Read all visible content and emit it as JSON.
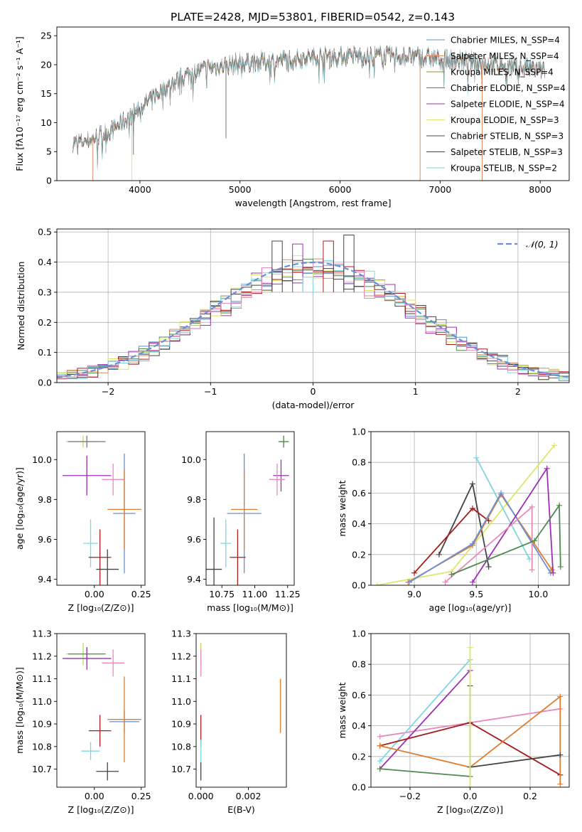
{
  "chart_data": [
    {
      "id": "spectrum",
      "type": "line",
      "title": "PLATE=2428, MJD=53801, FIBERID=0542, z=0.143",
      "xlabel": "wavelength [Angstrom, rest frame]",
      "ylabel": "Flux [fλ10⁻¹⁷ erg cm⁻² s⁻¹ A⁻¹]",
      "xlim": [
        3170,
        8290
      ],
      "ylim": [
        0,
        26.5
      ],
      "xticks": [
        4000,
        5000,
        6000,
        7000,
        8000
      ],
      "yticks": [
        0,
        5,
        10,
        15,
        20,
        25
      ],
      "legend_position": "top-right",
      "series": [
        {
          "name": "Chabrier MILES, N_SSP=4",
          "color": "#5a8fc2"
        },
        {
          "name": "Salpeter MILES, N_SSP=4",
          "color": "#d98c5f"
        },
        {
          "name": "Kroupa MILES, N_SSP=4",
          "color": "#9c8b2a"
        },
        {
          "name": "Chabrier ELODIE, N_SSP=4",
          "color": "#4f8a4f"
        },
        {
          "name": "Salpeter ELODIE, N_SSP=4",
          "color": "#9b30b3"
        },
        {
          "name": "Kroupa ELODIE, N_SSP=3",
          "color": "#dde66a"
        },
        {
          "name": "Chabrier STELIB, N_SSP=3",
          "color": "#444444"
        },
        {
          "name": "Salpeter STELIB, N_SSP=3",
          "color": "#a61c1c"
        },
        {
          "name": "Kroupa STELIB, N_SSP=2",
          "color": "#7fd6e0"
        }
      ],
      "continuum": {
        "x": [
          3330,
          3500,
          3700,
          3900,
          4000,
          4100,
          4300,
          4500,
          4700,
          4900,
          5100,
          5300,
          5500,
          5800,
          6100,
          6400,
          6700,
          7000,
          7300,
          7600,
          7800,
          8050
        ],
        "y": [
          6.5,
          7.0,
          8.5,
          11.0,
          12.5,
          14.0,
          16.5,
          18.5,
          19.5,
          20.0,
          20.5,
          20.5,
          21.0,
          21.5,
          21.5,
          21.5,
          21.5,
          21.0,
          20.5,
          20.0,
          19.5,
          19.0
        ]
      },
      "dips": [
        {
          "x": 3530,
          "y": 0,
          "color": "#d98c5f"
        },
        {
          "x": 3920,
          "y": 0,
          "color": "#dde66a"
        },
        {
          "x": 3935,
          "y": 4.5
        },
        {
          "x": 4860,
          "y": 7.3
        },
        {
          "x": 5895,
          "y": 19.2
        },
        {
          "x": 6800,
          "y": 0,
          "color": "#d98c5f"
        },
        {
          "x": 7420,
          "y": 0,
          "color": "#d98c5f"
        }
      ]
    },
    {
      "id": "residuals",
      "type": "histogram",
      "xlabel": "(data-model)/error",
      "ylabel": "Normed distribution",
      "xlim": [
        -2.5,
        2.5
      ],
      "ylim": [
        0,
        0.51
      ],
      "xticks": [
        -2,
        -1,
        0,
        1,
        2
      ],
      "yticks": [
        0.0,
        0.1,
        0.2,
        0.3,
        0.4,
        0.5
      ],
      "grid": true,
      "legend_position": "top-right",
      "legend": [
        {
          "name": "𝒩(0, 1)",
          "color": "#6a8fd8",
          "style": "dashed"
        }
      ],
      "bin_width": 0.1,
      "peak_bins": [
        {
          "x": -0.15,
          "y": 0.46,
          "color": "#9b30b3"
        },
        {
          "x": 0.35,
          "y": 0.49,
          "color": "#444444"
        },
        {
          "x": -0.35,
          "y": 0.47,
          "color": "#444444"
        },
        {
          "x": 0.15,
          "y": 0.47,
          "color": "#a61c1c"
        },
        {
          "x": -0.05,
          "y": 0.35,
          "color": "#7fd6e0"
        }
      ]
    },
    {
      "id": "age-vs-z",
      "type": "errorbar",
      "xlabel": "Z [log₁₀(Z/Z⊙)]",
      "ylabel": "age  [log₁₀(age/yr)]",
      "xlim": [
        -0.2,
        0.27
      ],
      "ylim": [
        9.37,
        10.14
      ],
      "xticks": [
        0.0,
        0.25
      ],
      "yticks": [
        9.4,
        9.6,
        9.8,
        10.0
      ],
      "points": [
        {
          "x": -0.06,
          "y": 10.09,
          "xerr": 0.09,
          "yerr": 0.03,
          "color": "#b5e060"
        },
        {
          "x": -0.04,
          "y": 10.09,
          "xerr": 0.1,
          "yerr": 0.03,
          "color": "#777777"
        },
        {
          "x": -0.04,
          "y": 9.92,
          "xerr": 0.13,
          "yerr": 0.1,
          "color": "#9b30b3"
        },
        {
          "x": 0.1,
          "y": 9.9,
          "xerr": 0.06,
          "yerr": 0.08,
          "color": "#e88aba"
        },
        {
          "x": 0.16,
          "y": 9.73,
          "xerr": 0.06,
          "yerr": 0.3,
          "color": "#6a8fd8"
        },
        {
          "x": 0.16,
          "y": 9.75,
          "xerr": 0.09,
          "yerr": 0.2,
          "color": "#e07d2e"
        },
        {
          "x": -0.02,
          "y": 9.58,
          "xerr": 0.04,
          "yerr": 0.12,
          "color": "#7fd6e0"
        },
        {
          "x": 0.03,
          "y": 9.51,
          "xerr": 0.06,
          "yerr": 0.14,
          "color": "#a61c1c"
        },
        {
          "x": 0.07,
          "y": 9.45,
          "xerr": 0.06,
          "yerr": 0.1,
          "color": "#444444"
        }
      ]
    },
    {
      "id": "age-vs-mass",
      "type": "errorbar",
      "xlabel": "mass [log₁₀(M/M⊙)]",
      "ylabel": "",
      "xlim": [
        10.63,
        11.3
      ],
      "ylim": [
        9.37,
        10.14
      ],
      "xticks": [
        10.75,
        11.0,
        11.25
      ],
      "yticks": [
        9.4,
        9.6,
        9.8,
        10.0
      ],
      "points": [
        {
          "x": 11.22,
          "y": 10.09,
          "xerr": 0.03,
          "yerr": 0.03,
          "color": "#b5e060"
        },
        {
          "x": 11.22,
          "y": 10.09,
          "xerr": 0.04,
          "yerr": 0.03,
          "color": "#4f8a4f"
        },
        {
          "x": 11.2,
          "y": 9.92,
          "xerr": 0.06,
          "yerr": 0.08,
          "color": "#9b30b3"
        },
        {
          "x": 11.17,
          "y": 9.9,
          "xerr": 0.06,
          "yerr": 0.08,
          "color": "#e88aba"
        },
        {
          "x": 10.92,
          "y": 9.73,
          "xerr": 0.13,
          "yerr": 0.3,
          "color": "#6a8fd8"
        },
        {
          "x": 10.92,
          "y": 9.75,
          "xerr": 0.1,
          "yerr": 0.2,
          "color": "#e07d2e"
        },
        {
          "x": 10.78,
          "y": 9.58,
          "xerr": 0.04,
          "yerr": 0.12,
          "color": "#7fd6e0"
        },
        {
          "x": 10.87,
          "y": 9.51,
          "xerr": 0.06,
          "yerr": 0.14,
          "color": "#a61c1c"
        },
        {
          "x": 10.69,
          "y": 9.45,
          "xerr": 0.06,
          "yerr": 0.26,
          "color": "#444444"
        }
      ]
    },
    {
      "id": "weight-vs-age",
      "type": "line",
      "xlabel": "age  [log₁₀(age/yr)]",
      "ylabel": "mass weight",
      "xlim": [
        8.65,
        10.25
      ],
      "ylim": [
        0,
        1.0
      ],
      "xticks": [
        9.0,
        9.5,
        10.0
      ],
      "yticks": [
        0.0,
        0.2,
        0.4,
        0.6,
        0.8,
        1.0
      ],
      "grid": true,
      "series": [
        {
          "color": "#dde66a",
          "x": [
            8.7,
            9.3,
            10.13
          ],
          "y": [
            0.0,
            0.09,
            0.91
          ]
        },
        {
          "color": "#7fd6e0",
          "x": [
            9.5,
            9.93
          ],
          "y": [
            0.83,
            0.17
          ]
        },
        {
          "color": "#444444",
          "x": [
            9.2,
            9.47,
            9.6
          ],
          "y": [
            0.2,
            0.66,
            0.12
          ]
        },
        {
          "color": "#a61c1c",
          "x": [
            9.0,
            9.47,
            9.6
          ],
          "y": [
            0.08,
            0.5,
            0.42
          ]
        },
        {
          "color": "#e07d2e",
          "x": [
            8.95,
            9.47,
            9.7,
            10.11
          ],
          "y": [
            0.02,
            0.26,
            0.59,
            0.1
          ]
        },
        {
          "color": "#6a8fd8",
          "x": [
            8.96,
            9.47,
            9.7,
            10.1
          ],
          "y": [
            0.02,
            0.27,
            0.6,
            0.08
          ]
        },
        {
          "color": "#9b30b3",
          "x": [
            9.47,
            10.07,
            10.12
          ],
          "y": [
            0.02,
            0.76,
            0.08
          ]
        },
        {
          "color": "#e88aba",
          "x": [
            9.25,
            9.95,
            9.95
          ],
          "y": [
            0.02,
            0.51,
            0.1
          ]
        },
        {
          "color": "#4f8a4f",
          "x": [
            9.3,
            9.97,
            10.17,
            10.18
          ],
          "y": [
            0.07,
            0.29,
            0.52,
            0.12
          ]
        }
      ]
    },
    {
      "id": "mass-vs-z",
      "type": "errorbar",
      "xlabel": "Z [log₁₀(Z/Z⊙)]",
      "ylabel": "mass [log₁₀(M/M⊙)]",
      "xlim": [
        -0.2,
        0.27
      ],
      "ylim": [
        10.62,
        11.3
      ],
      "xticks": [
        0.0,
        0.25
      ],
      "yticks": [
        10.7,
        10.8,
        10.9,
        11.0,
        11.1,
        11.2,
        11.3
      ],
      "points": [
        {
          "x": -0.06,
          "y": 11.21,
          "xerr": 0.09,
          "yerr": 0.05,
          "color": "#b5e060"
        },
        {
          "x": -0.04,
          "y": 11.21,
          "xerr": 0.1,
          "yerr": 0.03,
          "color": "#4f8a4f"
        },
        {
          "x": -0.04,
          "y": 11.19,
          "xerr": 0.13,
          "yerr": 0.05,
          "color": "#9b30b3"
        },
        {
          "x": 0.1,
          "y": 11.17,
          "xerr": 0.06,
          "yerr": 0.06,
          "color": "#e88aba"
        },
        {
          "x": 0.16,
          "y": 10.91,
          "xerr": 0.08,
          "yerr": 0.05,
          "color": "#6a8fd8"
        },
        {
          "x": 0.16,
          "y": 10.92,
          "xerr": 0.09,
          "yerr": 0.19,
          "color": "#e07d2e"
        },
        {
          "x": -0.02,
          "y": 10.78,
          "xerr": 0.05,
          "yerr": 0.04,
          "color": "#7fd6e0"
        },
        {
          "x": 0.03,
          "y": 10.87,
          "xerr": 0.06,
          "yerr": 0.07,
          "color": "#a61c1c"
        },
        {
          "x": 0.07,
          "y": 10.69,
          "xerr": 0.06,
          "yerr": 0.04,
          "color": "#444444"
        }
      ]
    },
    {
      "id": "mass-vs-ebv",
      "type": "errorbar",
      "xlabel": "E(B-V)",
      "ylabel": "",
      "xlim": [
        -0.0002,
        0.0036
      ],
      "ylim": [
        10.62,
        11.3
      ],
      "xticks": [
        0.0,
        0.002
      ],
      "yticks": [
        10.7,
        10.8,
        10.9,
        11.0,
        11.1,
        11.2,
        11.3
      ],
      "points": [
        {
          "x": 0.0,
          "y": 11.21,
          "xerr": 0.0,
          "yerr": 0.05,
          "color": "#b5e060"
        },
        {
          "x": 0.0,
          "y": 11.17,
          "xerr": 0.0,
          "yerr": 0.06,
          "color": "#e88aba"
        },
        {
          "x": 0.0,
          "y": 10.87,
          "xerr": 0.0,
          "yerr": 0.07,
          "color": "#a61c1c"
        },
        {
          "x": 0.0,
          "y": 10.78,
          "xerr": 0.0,
          "yerr": 0.05,
          "color": "#7fd6e0"
        },
        {
          "x": 0.0,
          "y": 10.69,
          "xerr": 0.0,
          "yerr": 0.04,
          "color": "#444444"
        },
        {
          "x": 0.00335,
          "y": 10.98,
          "xerr": 0.0,
          "yerr": 0.12,
          "color": "#e07d2e"
        }
      ]
    },
    {
      "id": "weight-vs-z",
      "type": "line",
      "xlabel": "Z [log₁₀(Z/Z⊙)]",
      "ylabel": "mass weight",
      "xlim": [
        -0.33,
        0.33
      ],
      "ylim": [
        0,
        1.0
      ],
      "xticks": [
        -0.2,
        0.0,
        0.2
      ],
      "yticks": [
        0.0,
        0.2,
        0.4,
        0.6,
        0.8,
        1.0
      ],
      "grid": true,
      "series": [
        {
          "color": "#e88aba",
          "x": [
            -0.3,
            0.0,
            0.3
          ],
          "y": [
            0.33,
            0.42,
            0.51
          ]
        },
        {
          "color": "#7fd6e0",
          "x": [
            -0.3,
            0.0
          ],
          "y": [
            0.17,
            0.83
          ]
        },
        {
          "color": "#9b30b3",
          "x": [
            -0.3,
            0.0
          ],
          "y": [
            0.12,
            0.76
          ]
        },
        {
          "color": "#a61c1c",
          "x": [
            -0.3,
            0.0,
            0.3
          ],
          "y": [
            0.27,
            0.42,
            0.08
          ]
        },
        {
          "color": "#e07d2e",
          "x": [
            -0.3,
            0.0,
            0.3,
            0.3
          ],
          "y": [
            0.27,
            0.13,
            0.59,
            0.02
          ]
        },
        {
          "color": "#444444",
          "x": [
            0.0,
            0.0,
            0.3
          ],
          "y": [
            0.66,
            0.13,
            0.21
          ]
        },
        {
          "color": "#4f8a4f",
          "x": [
            -0.3,
            0.0,
            0.0
          ],
          "y": [
            0.12,
            0.07,
            0.13
          ]
        },
        {
          "color": "#dde66a",
          "x": [
            0.0,
            0.0
          ],
          "y": [
            0.91,
            0.0
          ]
        }
      ]
    }
  ]
}
